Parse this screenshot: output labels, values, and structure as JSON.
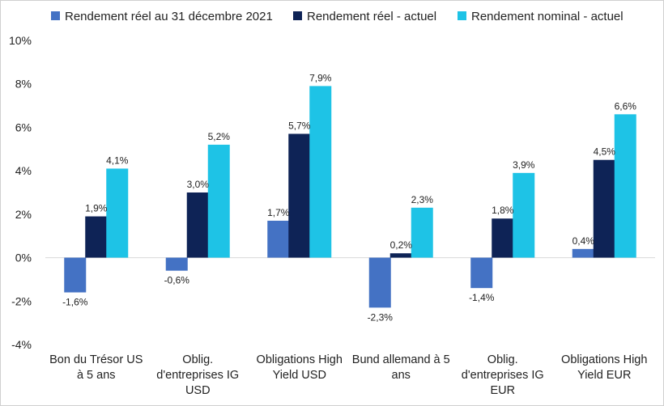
{
  "chart_data": {
    "type": "bar",
    "title": "",
    "xlabel": "",
    "ylabel": "",
    "ylim": [
      -4,
      10
    ],
    "yticks": [
      10,
      8,
      6,
      4,
      2,
      0,
      -2,
      -4
    ],
    "ytick_labels": [
      "10%",
      "8%",
      "6%",
      "4%",
      "2%",
      "0%",
      "-2%",
      "-4%"
    ],
    "grid": false,
    "legend_position": "top",
    "categories": [
      [
        "Bon du Trésor US",
        "à 5 ans"
      ],
      [
        "Oblig.",
        "d'entreprises IG",
        "USD"
      ],
      [
        "Obligations High",
        "Yield USD"
      ],
      [
        "Bund allemand à 5",
        "ans"
      ],
      [
        "Oblig.",
        "d'entreprises IG",
        "EUR"
      ],
      [
        "Obligations High",
        "Yield EUR"
      ]
    ],
    "series": [
      {
        "name": "Rendement réel au 31 décembre 2021",
        "color": "#4472c4",
        "values": [
          -1.6,
          -0.6,
          1.7,
          -2.3,
          -1.4,
          0.4
        ],
        "labels": [
          "-1,6%",
          "-0,6%",
          "1,7%",
          "-2,3%",
          "-1,4%",
          "0,4%"
        ]
      },
      {
        "name": "Rendement réel - actuel",
        "color": "#0e2356",
        "values": [
          1.9,
          3.0,
          5.7,
          0.2,
          1.8,
          4.5
        ],
        "labels": [
          "1,9%",
          "3,0%",
          "5,7%",
          "0,2%",
          "1,8%",
          "4,5%"
        ]
      },
      {
        "name": "Rendement nominal - actuel",
        "color": "#1ec3e6",
        "values": [
          4.1,
          5.2,
          7.9,
          2.3,
          3.9,
          6.6
        ],
        "labels": [
          "4,1%",
          "5,2%",
          "7,9%",
          "2,3%",
          "3,9%",
          "6,6%"
        ]
      }
    ]
  }
}
